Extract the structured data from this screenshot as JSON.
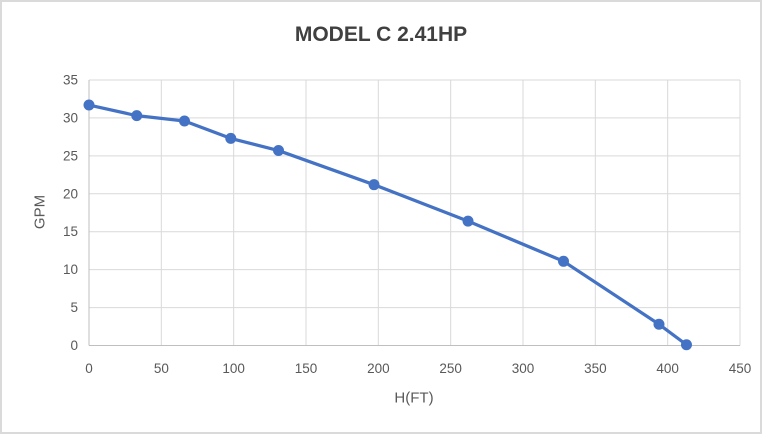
{
  "chart_data": {
    "type": "line",
    "title": "MODEL C 2.41HP",
    "xlabel": "H(FT)",
    "ylabel": "GPM",
    "x": [
      0,
      33,
      66,
      98,
      131,
      197,
      262,
      328,
      394,
      413
    ],
    "series": [
      {
        "name": "GPM",
        "values": [
          31.7,
          30.3,
          29.6,
          27.3,
          25.7,
          21.2,
          16.4,
          11.1,
          2.8,
          0.1
        ]
      }
    ],
    "xlim": [
      0,
      450
    ],
    "ylim": [
      0,
      35
    ],
    "xticks": [
      0,
      50,
      100,
      150,
      200,
      250,
      300,
      350,
      400,
      450
    ],
    "yticks": [
      0,
      5,
      10,
      15,
      20,
      25,
      30,
      35
    ],
    "grid": true,
    "legend": false,
    "marker": "circle",
    "colors": {
      "series": "#4472C4",
      "gridline": "#D9D9D9",
      "axis_line": "#BFBFBF",
      "tick_label": "#595959",
      "title": "#404040",
      "background": "#FFFFFF",
      "border": "#DADADA"
    }
  }
}
